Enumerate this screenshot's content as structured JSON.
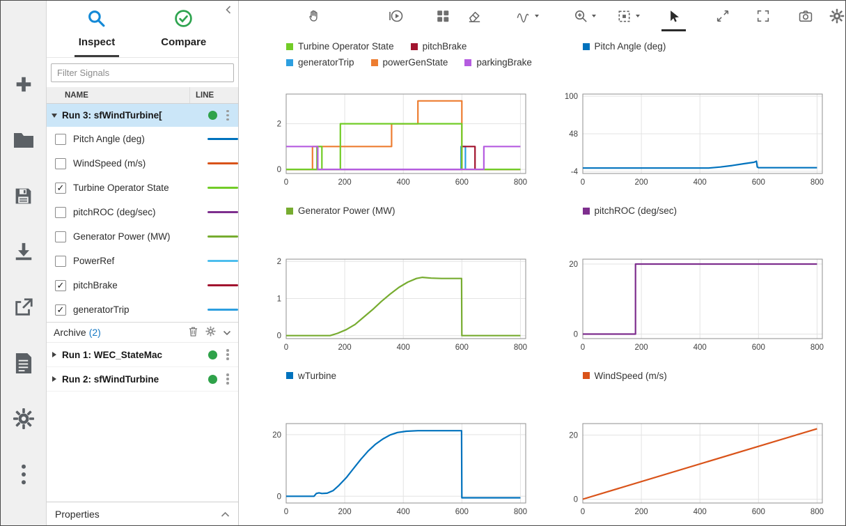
{
  "colors": {
    "selection_row": "#cbe6f8",
    "status_green": "#2fa24a",
    "archive_count_blue": "#1779c4",
    "inspect_icon_blue": "#1389d6",
    "compare_icon_green": "#2EA44F"
  },
  "left_toolbar": {
    "icons": [
      {
        "name": "add"
      },
      {
        "name": "open-folder"
      },
      {
        "name": "save"
      },
      {
        "name": "import"
      },
      {
        "name": "export"
      },
      {
        "name": "report"
      },
      {
        "name": "preferences"
      },
      {
        "name": "more-options"
      }
    ]
  },
  "sidebar": {
    "tabs": [
      {
        "label": "Inspect",
        "active": true
      },
      {
        "label": "Compare",
        "active": false
      }
    ],
    "filter": {
      "placeholder": "Filter Signals"
    },
    "columns": {
      "name": "NAME",
      "line": "LINE"
    },
    "selected_run": {
      "label": "Run 3: sfWindTurbine["
    },
    "signals": [
      {
        "label": "Pitch Angle (deg)",
        "checked": false,
        "color": "#0072BD"
      },
      {
        "label": "WindSpeed (m/s)",
        "checked": false,
        "color": "#D95319"
      },
      {
        "label": "Turbine Operator State",
        "checked": true,
        "color": "#72CC27"
      },
      {
        "label": "pitchROC (deg/sec)",
        "checked": false,
        "color": "#7E2F8E"
      },
      {
        "label": "Generator Power (MW)",
        "checked": false,
        "color": "#77AC30"
      },
      {
        "label": "PowerRef",
        "checked": false,
        "color": "#4DBEEE"
      },
      {
        "label": "pitchBrake",
        "checked": true,
        "color": "#A2142F"
      },
      {
        "label": "generatorTrip",
        "checked": true,
        "color": "#2D9FE0"
      }
    ],
    "archive": {
      "title": "Archive",
      "count": "(2)",
      "runs": [
        {
          "label": "Run 1: WEC_StateMac"
        },
        {
          "label": "Run 2: sfWindTurbine"
        }
      ]
    },
    "properties": {
      "label": "Properties"
    }
  },
  "plot_toolbar": {
    "icons": [
      {
        "name": "pan"
      },
      {
        "name": "replay-cursor"
      },
      {
        "name": "subplot-layout"
      },
      {
        "name": "eraser"
      },
      {
        "name": "signal-cursor",
        "dropdown": true
      },
      {
        "name": "zoom",
        "dropdown": true
      },
      {
        "name": "fit-to-view",
        "dropdown": true
      },
      {
        "name": "pointer",
        "selected": true
      },
      {
        "name": "expand"
      },
      {
        "name": "fullscreen"
      },
      {
        "name": "snapshot"
      },
      {
        "name": "settings"
      }
    ]
  },
  "chart_data": [
    {
      "id": "states",
      "type": "line",
      "legend": [
        {
          "label": "Turbine Operator State",
          "color": "#72CC27"
        },
        {
          "label": "pitchBrake",
          "color": "#A2142F"
        },
        {
          "label": "generatorTrip",
          "color": "#2D9FE0"
        },
        {
          "label": "powerGenState",
          "color": "#ED7D31"
        },
        {
          "label": "parkingBrake",
          "color": "#B55CE0"
        }
      ],
      "xlim": [
        0,
        818
      ],
      "ylim": [
        -0.18,
        3.3
      ],
      "xticks": [
        0,
        200,
        400,
        600,
        800
      ],
      "yticks": [
        0,
        2
      ],
      "series": [
        {
          "name": "generatorTrip",
          "color": "#2D9FE0",
          "points": [
            [
              0,
              0
            ],
            [
              597,
              0
            ],
            [
              597,
              1
            ],
            [
              612,
              1
            ],
            [
              612,
              0
            ],
            [
              800,
              0
            ]
          ]
        },
        {
          "name": "pitchBrake",
          "color": "#A2142F",
          "points": [
            [
              0,
              0
            ],
            [
              600,
              0
            ],
            [
              600,
              1
            ],
            [
              645,
              1
            ],
            [
              645,
              0
            ],
            [
              800,
              0
            ]
          ]
        },
        {
          "name": "powerGenState",
          "color": "#ED7D31",
          "points": [
            [
              0,
              0
            ],
            [
              90,
              0
            ],
            [
              90,
              1
            ],
            [
              360,
              1
            ],
            [
              360,
              2
            ],
            [
              450,
              2
            ],
            [
              450,
              3
            ],
            [
              600,
              3
            ],
            [
              600,
              0
            ],
            [
              800,
              0
            ]
          ]
        },
        {
          "name": "Turbine Operator State",
          "color": "#72CC27",
          "points": [
            [
              0,
              0
            ],
            [
              105,
              0
            ],
            [
              105,
              1
            ],
            [
              122,
              1
            ],
            [
              122,
              0
            ],
            [
              185,
              0
            ],
            [
              185,
              2
            ],
            [
              600,
              2
            ],
            [
              600,
              0
            ],
            [
              800,
              0
            ]
          ]
        },
        {
          "name": "parkingBrake",
          "color": "#B55CE0",
          "points": [
            [
              0,
              1
            ],
            [
              108,
              1
            ],
            [
              108,
              0
            ],
            [
              675,
              0
            ],
            [
              675,
              1
            ],
            [
              800,
              1
            ]
          ]
        }
      ]
    },
    {
      "id": "pitch-angle",
      "type": "line",
      "legend": [
        {
          "label": "Pitch Angle (deg)",
          "color": "#0072BD"
        }
      ],
      "xlim": [
        0,
        818
      ],
      "ylim": [
        -7,
        103
      ],
      "xticks": [
        0,
        200,
        400,
        600,
        800
      ],
      "yticks": [
        -4,
        48,
        100
      ],
      "series": [
        {
          "name": "Pitch Angle (deg)",
          "color": "#0072BD",
          "points": [
            [
              0,
              0.5
            ],
            [
              430,
              0.5
            ],
            [
              470,
              2
            ],
            [
              510,
              4
            ],
            [
              550,
              6.5
            ],
            [
              585,
              8.5
            ],
            [
              593,
              10
            ],
            [
              596,
              2
            ],
            [
              600,
              1
            ],
            [
              800,
              1
            ]
          ]
        }
      ]
    },
    {
      "id": "generator-power",
      "type": "line",
      "legend": [
        {
          "label": "Generator Power (MW)",
          "color": "#77AC30"
        }
      ],
      "xlim": [
        0,
        818
      ],
      "ylim": [
        -0.08,
        2.06
      ],
      "xticks": [
        0,
        200,
        400,
        600,
        800
      ],
      "yticks": [
        0,
        1,
        2
      ],
      "series": [
        {
          "name": "Generator Power (MW)",
          "color": "#77AC30",
          "points": [
            [
              0,
              0
            ],
            [
              150,
              0
            ],
            [
              175,
              0.06
            ],
            [
              205,
              0.16
            ],
            [
              235,
              0.3
            ],
            [
              265,
              0.5
            ],
            [
              295,
              0.7
            ],
            [
              325,
              0.92
            ],
            [
              355,
              1.12
            ],
            [
              385,
              1.3
            ],
            [
              415,
              1.44
            ],
            [
              445,
              1.54
            ],
            [
              465,
              1.57
            ],
            [
              495,
              1.55
            ],
            [
              530,
              1.54
            ],
            [
              599,
              1.54
            ],
            [
              600,
              0
            ],
            [
              800,
              0
            ]
          ]
        }
      ]
    },
    {
      "id": "pitch-roc",
      "type": "line",
      "legend": [
        {
          "label": "pitchROC (deg/sec)",
          "color": "#7E2F8E"
        }
      ],
      "xlim": [
        0,
        818
      ],
      "ylim": [
        -1.3,
        21.4
      ],
      "xticks": [
        0,
        200,
        400,
        600,
        800
      ],
      "yticks": [
        0,
        20
      ],
      "series": [
        {
          "name": "pitchROC (deg/sec)",
          "color": "#7E2F8E",
          "points": [
            [
              0,
              0
            ],
            [
              180,
              0
            ],
            [
              180,
              20
            ],
            [
              800,
              20
            ]
          ]
        }
      ]
    },
    {
      "id": "w-turbine",
      "type": "line",
      "legend": [
        {
          "label": "wTurbine",
          "color": "#0072BD"
        }
      ],
      "xlim": [
        0,
        818
      ],
      "ylim": [
        -2.2,
        23.6
      ],
      "xticks": [
        0,
        200,
        400,
        600,
        800
      ],
      "yticks": [
        0,
        20
      ],
      "series": [
        {
          "name": "wTurbine",
          "color": "#0072BD",
          "points": [
            [
              0,
              0
            ],
            [
              95,
              0
            ],
            [
              103,
              0.9
            ],
            [
              112,
              1.1
            ],
            [
              122,
              0.9
            ],
            [
              140,
              1
            ],
            [
              160,
              1.8
            ],
            [
              180,
              3.5
            ],
            [
              205,
              6
            ],
            [
              230,
              9
            ],
            [
              255,
              12
            ],
            [
              280,
              14.7
            ],
            [
              305,
              16.9
            ],
            [
              330,
              18.6
            ],
            [
              355,
              19.9
            ],
            [
              380,
              20.7
            ],
            [
              410,
              21.1
            ],
            [
              450,
              21.3
            ],
            [
              599,
              21.3
            ],
            [
              600,
              -0.5
            ],
            [
              800,
              -0.5
            ]
          ]
        }
      ]
    },
    {
      "id": "wind-speed",
      "type": "line",
      "legend": [
        {
          "label": "WindSpeed (m/s)",
          "color": "#D95319"
        }
      ],
      "xlim": [
        0,
        818
      ],
      "ylim": [
        -1.2,
        23.6
      ],
      "xticks": [
        0,
        200,
        400,
        600,
        800
      ],
      "yticks": [
        0,
        20
      ],
      "series": [
        {
          "name": "WindSpeed (m/s)",
          "color": "#D95319",
          "points": [
            [
              0,
              0
            ],
            [
              800,
              22
            ]
          ]
        }
      ]
    }
  ]
}
